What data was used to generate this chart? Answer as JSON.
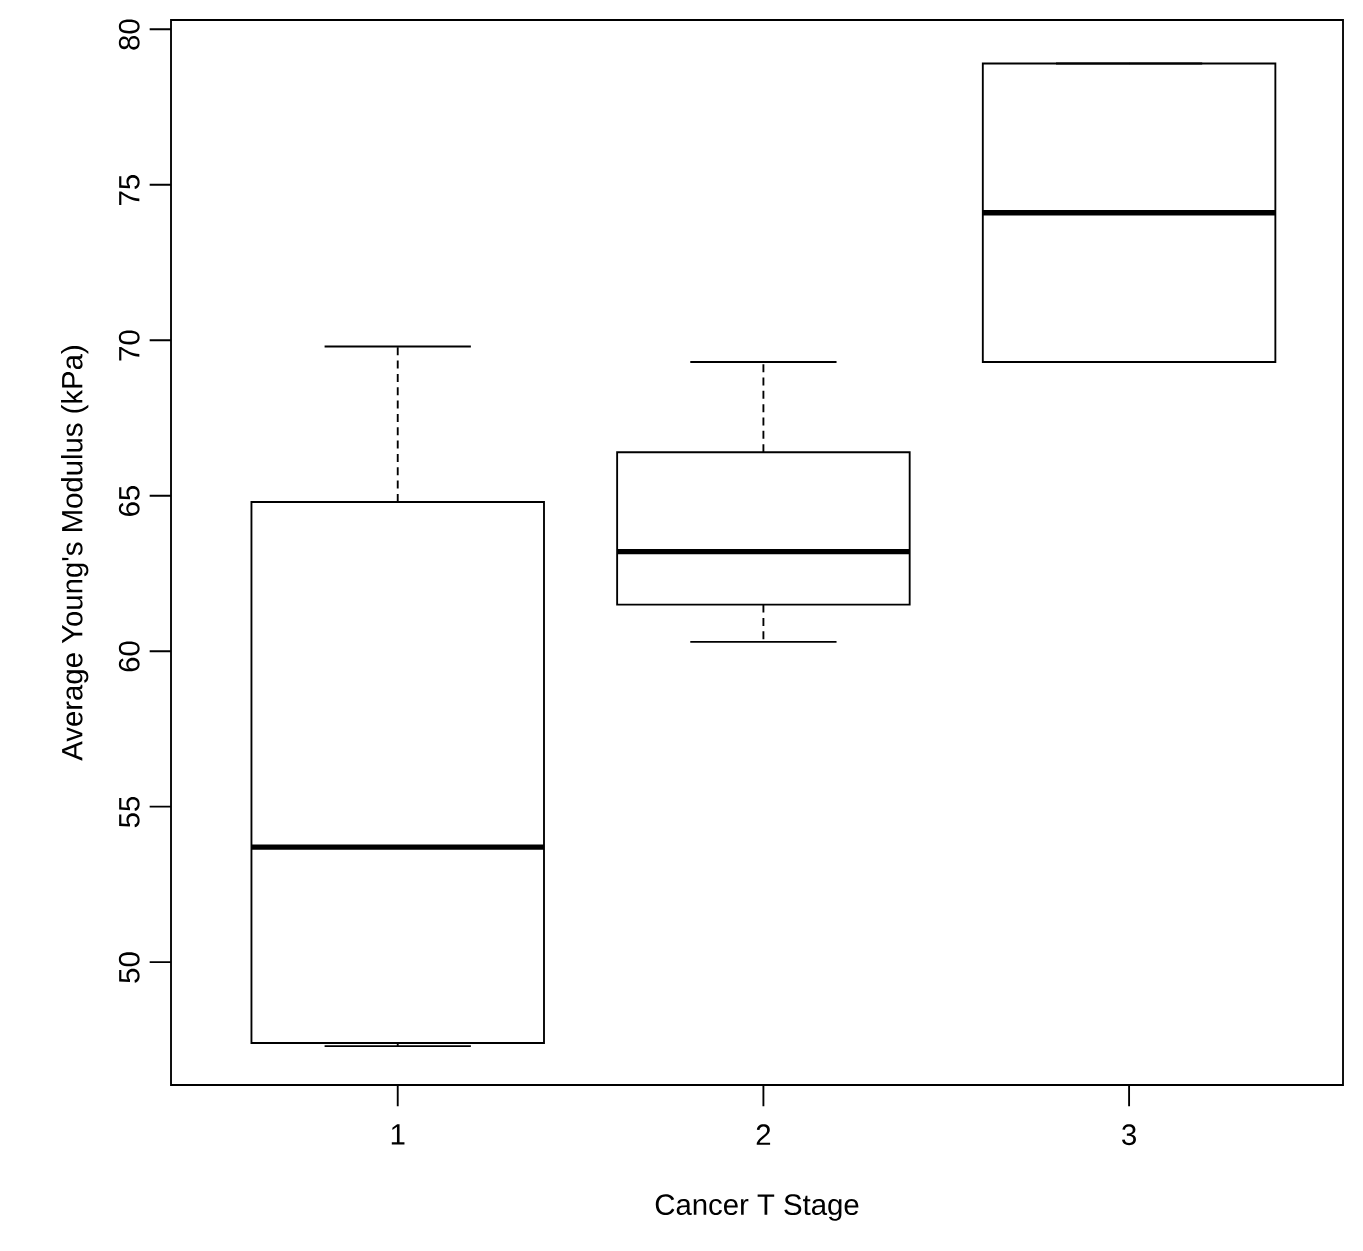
{
  "chart_data": {
    "type": "box",
    "xlabel": "Cancer T Stage",
    "ylabel": "Average Young's Modulus (kPa)",
    "categories": [
      "1",
      "2",
      "3"
    ],
    "boxes": [
      {
        "low": 47.3,
        "q1": 47.4,
        "median": 53.7,
        "q3": 64.8,
        "high": 69.8
      },
      {
        "low": 60.3,
        "q1": 61.5,
        "median": 63.2,
        "q3": 66.4,
        "high": 69.3
      },
      {
        "low": 69.3,
        "q1": 69.3,
        "median": 74.1,
        "q3": 78.9,
        "high": 78.9
      }
    ],
    "ylim": [
      46.05,
      80.3
    ],
    "yticks": [
      50,
      55,
      60,
      65,
      70,
      75,
      80
    ],
    "grid": false
  }
}
